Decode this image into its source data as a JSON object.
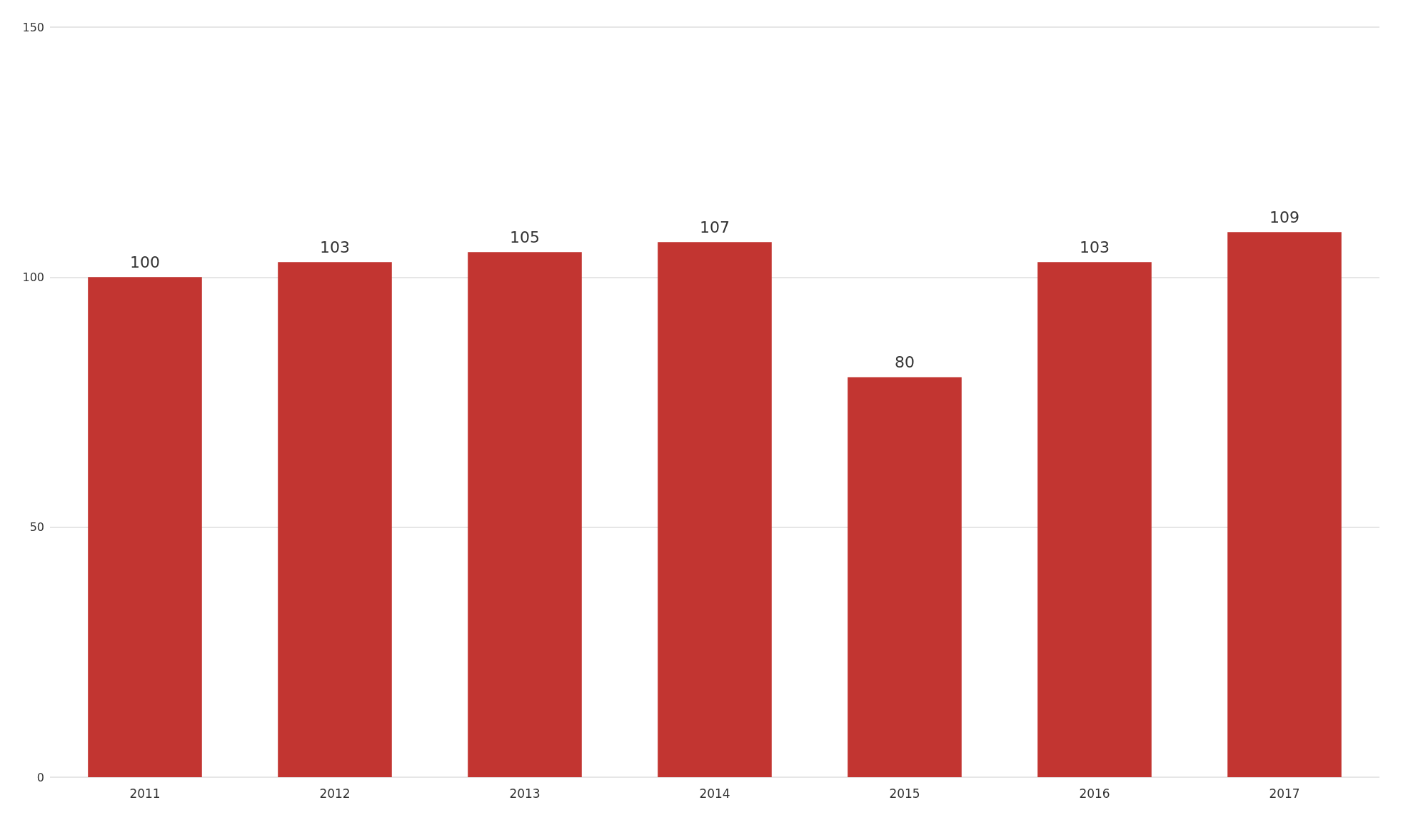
{
  "chart_data": {
    "type": "bar",
    "categories": [
      "2011",
      "2012",
      "2013",
      "2014",
      "2015",
      "2016",
      "2017"
    ],
    "values": [
      100,
      103,
      105,
      107,
      80,
      103,
      109
    ],
    "color": "#c23531",
    "ylim": [
      0,
      150
    ],
    "yticks": [
      0,
      50,
      100,
      150
    ],
    "grid": "y",
    "data_labels": true
  }
}
